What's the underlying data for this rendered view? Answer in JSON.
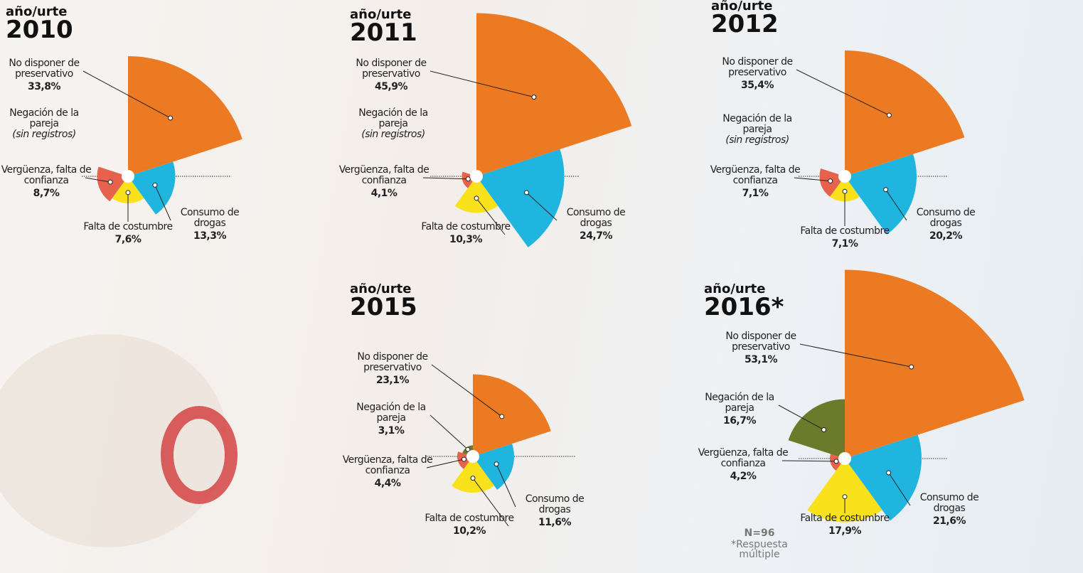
{
  "chart_data": [
    {
      "type": "rose",
      "label": "año/urte",
      "title": "2010",
      "categories": [
        "No disponer de preservativo",
        "Consumo de drogas",
        "Falta de costumbre",
        "Vergüenza, falta de confianza",
        "Negación de la pareja"
      ],
      "values": [
        33.8,
        13.3,
        7.6,
        8.7,
        null
      ],
      "value_labels": [
        "33,8%",
        "13,3%",
        "7,6%",
        "8,7%",
        "(sin registros)"
      ],
      "colors": [
        "#ec7a23",
        "#1fb5df",
        "#f9e21b",
        "#e6624c",
        "#6c7a2b"
      ]
    },
    {
      "type": "rose",
      "label": "año/urte",
      "title": "2011",
      "categories": [
        "No disponer de preservativo",
        "Consumo de drogas",
        "Falta de costumbre",
        "Vergüenza, falta de confianza",
        "Negación de la pareja"
      ],
      "values": [
        45.9,
        24.7,
        10.3,
        4.1,
        null
      ],
      "value_labels": [
        "45,9%",
        "24,7%",
        "10,3%",
        "4,1%",
        "(sin registros)"
      ],
      "colors": [
        "#ec7a23",
        "#1fb5df",
        "#f9e21b",
        "#e6624c",
        "#6c7a2b"
      ]
    },
    {
      "type": "rose",
      "label": "año/urte",
      "title": "2012",
      "categories": [
        "No disponer de preservativo",
        "Consumo de drogas",
        "Falta de costumbre",
        "Vergüenza, falta de confianza",
        "Negación de la pareja"
      ],
      "values": [
        35.4,
        20.2,
        7.1,
        7.1,
        null
      ],
      "value_labels": [
        "35,4%",
        "20,2%",
        "7,1%",
        "7,1%",
        "(sin registros)"
      ],
      "colors": [
        "#ec7a23",
        "#1fb5df",
        "#f9e21b",
        "#e6624c",
        "#6c7a2b"
      ]
    },
    {
      "type": "rose",
      "label": "año/urte",
      "title": "2015",
      "categories": [
        "No disponer de preservativo",
        "Consumo de drogas",
        "Falta de costumbre",
        "Vergüenza, falta de confianza",
        "Negación de la pareja"
      ],
      "values": [
        23.1,
        11.6,
        10.2,
        4.4,
        3.1
      ],
      "value_labels": [
        "23,1%",
        "11,6%",
        "10,2%",
        "4,4%",
        "3,1%"
      ],
      "colors": [
        "#ec7a23",
        "#1fb5df",
        "#f9e21b",
        "#e6624c",
        "#6c7a2b"
      ]
    },
    {
      "type": "rose",
      "label": "año/urte",
      "title": "2016*",
      "categories": [
        "No disponer de preservativo",
        "Consumo de drogas",
        "Falta de costumbre",
        "Vergüenza, falta de confianza",
        "Negación de la pareja"
      ],
      "values": [
        53.1,
        21.6,
        17.9,
        4.2,
        16.7
      ],
      "value_labels": [
        "53,1%",
        "21,6%",
        "17,9%",
        "4,2%",
        "16,7%"
      ],
      "colors": [
        "#ec7a23",
        "#1fb5df",
        "#f9e21b",
        "#e6624c",
        "#6c7a2b"
      ],
      "annotations": [
        "N=96",
        "*Respuesta múltiple"
      ]
    }
  ]
}
